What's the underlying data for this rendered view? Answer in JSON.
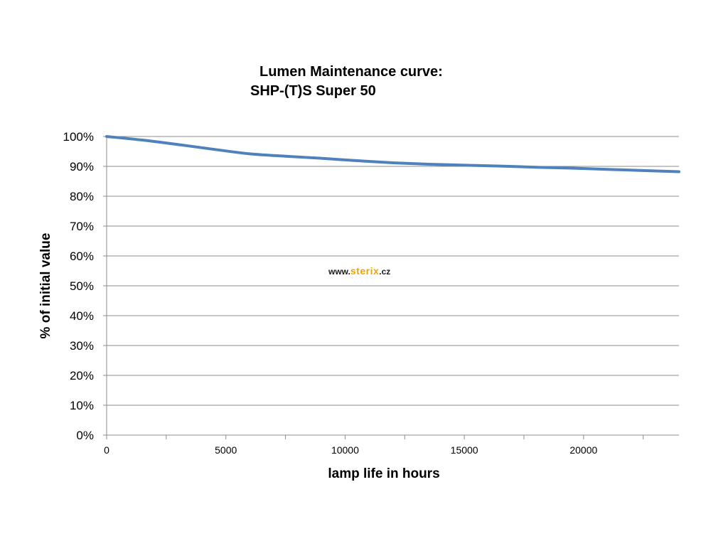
{
  "chart_data": {
    "type": "line",
    "title": "Lumen Maintenance curve:",
    "subtitle": "SHP-(T)S Super  50",
    "xlabel": "lamp life in hours",
    "ylabel": "% of initial value",
    "xlim": [
      0,
      24000
    ],
    "ylim": [
      0,
      100
    ],
    "x_ticks": [
      0,
      5000,
      10000,
      15000,
      20000
    ],
    "y_ticks": [
      "0%",
      "10%",
      "20%",
      "30%",
      "40%",
      "50%",
      "60%",
      "70%",
      "80%",
      "90%",
      "100%"
    ],
    "grid": "horizontal",
    "legend": "none",
    "series": [
      {
        "color": "#4f81bd",
        "x": [
          0,
          1500,
          3000,
          4500,
          6000,
          7500,
          9000,
          10500,
          12000,
          13500,
          15000,
          16500,
          18000,
          19500,
          21000,
          22500,
          24000
        ],
        "y": [
          100,
          98.8,
          97.3,
          95.7,
          94.2,
          93.4,
          92.7,
          91.9,
          91.2,
          90.7,
          90.4,
          90.1,
          89.7,
          89.4,
          89.0,
          88.6,
          88.2
        ]
      }
    ]
  },
  "watermark": {
    "prefix": "www.",
    "brand": "sterix",
    "suffix": ".cz",
    "brand_color": "#f0a400"
  }
}
